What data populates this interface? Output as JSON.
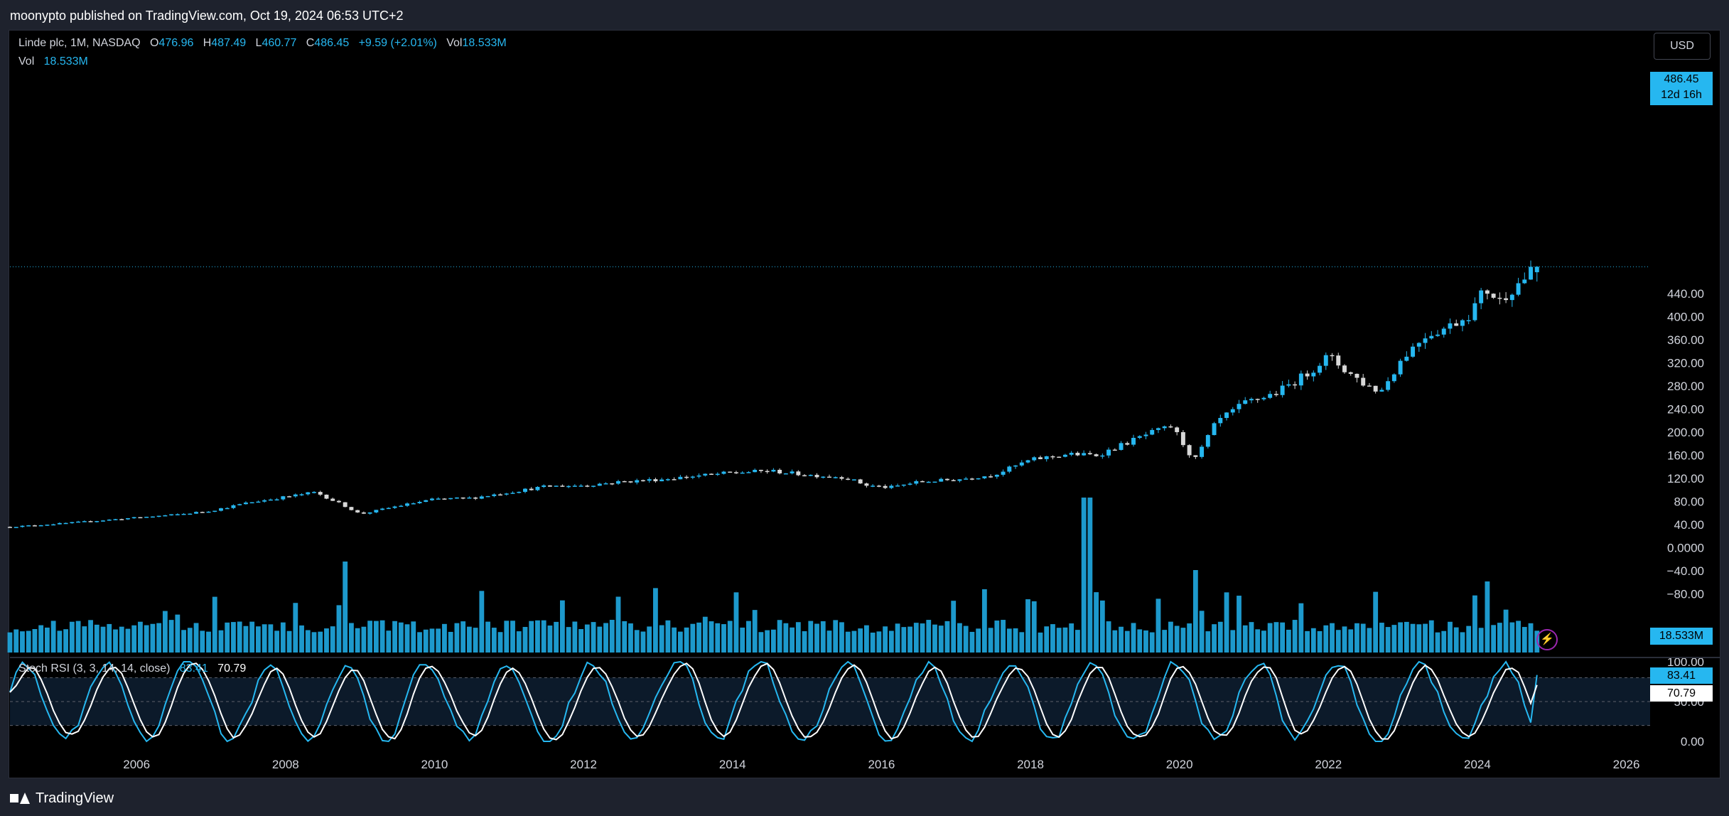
{
  "header": {
    "publisher_line": "moonypto published on TradingView.com, Oct 19, 2024 06:53 UTC+2"
  },
  "legend": {
    "symbol": "Linde plc, 1M, NASDAQ",
    "open_key": "O",
    "open": "476.96",
    "high_key": "H",
    "high": "487.49",
    "low_key": "L",
    "low": "460.77",
    "close_key": "C",
    "close": "486.45",
    "change": "+9.59 (+2.01%)",
    "vol_key": "Vol",
    "vol": "18.533M",
    "vol_row_key": "Vol",
    "vol_row_value": "18.533M"
  },
  "currency_button": "USD",
  "price_tag": {
    "price": "486.45",
    "countdown": "12d 16h"
  },
  "volume_tag": "18.533M",
  "rsi_legend": {
    "name": "Stoch RSI (3, 3, 14, 14, close)",
    "k": "83.41",
    "d": "70.79"
  },
  "rsi_tags": {
    "k": "83.41",
    "d": "70.79"
  },
  "footer": {
    "brand": "TradingView"
  },
  "colors": {
    "up": "#26b7f0",
    "down": "#d7d7d7",
    "background": "#000000",
    "frame": "#1e222d",
    "rsi_d": "#ffffff"
  },
  "chart_data": {
    "type": "candlestick",
    "title": "Linde plc, 1M, NASDAQ",
    "price_axis": {
      "ylim": [
        -100,
        510
      ],
      "ticks": [
        "440.00",
        "400.00",
        "360.00",
        "320.00",
        "280.00",
        "240.00",
        "200.00",
        "160.00",
        "120.00",
        "80.00",
        "40.00",
        "0.0000",
        "−40.00",
        "−80.00"
      ],
      "tick_values": [
        440,
        400,
        360,
        320,
        280,
        240,
        200,
        160,
        120,
        80,
        40,
        0,
        -40,
        -80
      ]
    },
    "x_axis": {
      "ticks": [
        "2006",
        "2008",
        "2010",
        "2012",
        "2014",
        "2016",
        "2018",
        "2020",
        "2022",
        "2024",
        "2026"
      ],
      "tick_values": [
        2006,
        2008,
        2010,
        2012,
        2014,
        2016,
        2018,
        2020,
        2022,
        2024,
        2026
      ],
      "xlim": [
        2004.3,
        2026.3
      ]
    },
    "price_anchors": [
      [
        2004.3,
        36
      ],
      [
        2005.0,
        42
      ],
      [
        2006.0,
        52
      ],
      [
        2006.6,
        58
      ],
      [
        2007.0,
        64
      ],
      [
        2007.5,
        78
      ],
      [
        2007.9,
        86
      ],
      [
        2008.4,
        96
      ],
      [
        2008.8,
        72
      ],
      [
        2009.0,
        58
      ],
      [
        2009.5,
        72
      ],
      [
        2010.0,
        84
      ],
      [
        2010.5,
        86
      ],
      [
        2011.0,
        96
      ],
      [
        2011.5,
        106
      ],
      [
        2012.0,
        108
      ],
      [
        2012.5,
        114
      ],
      [
        2013.0,
        118
      ],
      [
        2013.5,
        124
      ],
      [
        2014.0,
        130
      ],
      [
        2014.5,
        133
      ],
      [
        2015.0,
        126
      ],
      [
        2015.5,
        122
      ],
      [
        2015.8,
        108
      ],
      [
        2016.1,
        104
      ],
      [
        2016.5,
        114
      ],
      [
        2017.0,
        118
      ],
      [
        2017.5,
        126
      ],
      [
        2018.0,
        152
      ],
      [
        2018.5,
        162
      ],
      [
        2018.9,
        160
      ],
      [
        2019.3,
        182
      ],
      [
        2019.6,
        198
      ],
      [
        2019.9,
        210
      ],
      [
        2020.2,
        150
      ],
      [
        2020.5,
        218
      ],
      [
        2020.9,
        252
      ],
      [
        2021.3,
        268
      ],
      [
        2021.7,
        300
      ],
      [
        2022.0,
        332
      ],
      [
        2022.2,
        310
      ],
      [
        2022.5,
        282
      ],
      [
        2022.7,
        270
      ],
      [
        2023.0,
        330
      ],
      [
        2023.3,
        368
      ],
      [
        2023.6,
        382
      ],
      [
        2023.9,
        405
      ],
      [
        2024.1,
        448
      ],
      [
        2024.3,
        428
      ],
      [
        2024.5,
        452
      ],
      [
        2024.8,
        486.45
      ]
    ],
    "last_candle": {
      "open": 476.96,
      "high": 487.49,
      "low": 460.77,
      "close": 486.45
    },
    "volume": {
      "last": 18.533,
      "unit": "M",
      "spike_year": 2018.75
    },
    "stoch_rsi": {
      "ylim": [
        0,
        100
      ],
      "ticks": [
        "100.00",
        "50.00",
        "0.00"
      ],
      "tick_values": [
        100,
        50,
        0
      ],
      "bands": [
        80,
        20
      ],
      "k_last": 83.41,
      "d_last": 70.79
    }
  }
}
